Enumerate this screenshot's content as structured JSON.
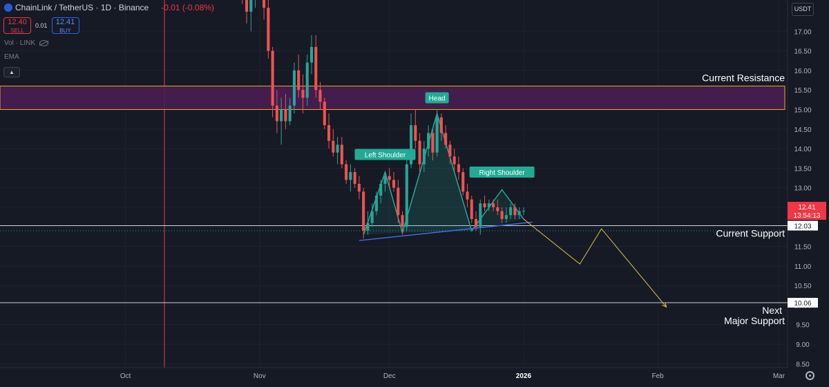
{
  "header": {
    "symbol": "ChainLink / TetherUS · 1D · Binance",
    "change": "-0.01 (-0.08%)",
    "sell_price": "12.40",
    "sell_label": "SELL",
    "spread": "0.01",
    "buy_price": "12.41",
    "buy_label": "BUY",
    "vol_label": "Vol · LINK",
    "ema_label": "EMA",
    "collapse_icon": "chevron-up-icon",
    "visibility_icon": "eye-off-icon"
  },
  "unit_label": "USDT",
  "settings_icon": "gear-icon",
  "colors": {
    "background": "#161a25",
    "up": "#26a69a",
    "down": "#ef5350",
    "resistance_fill": "#4a1e55",
    "resistance_border": "#f5a623",
    "trend": "#3f6fe8",
    "forecast": "#e0c14b",
    "pattern": "#22ab94",
    "price_tag": "#f23645"
  },
  "chart_data": {
    "type": "candlestick",
    "symbol": "LINK/USDT",
    "timeframe": "1D",
    "y_axis": {
      "min": 8.4,
      "max": 17.8,
      "ticks": [
        17.0,
        16.5,
        16.0,
        15.5,
        15.0,
        14.5,
        14.0,
        13.5,
        13.0,
        12.5,
        12.0,
        11.5,
        11.0,
        10.5,
        10.0,
        9.5,
        9.0,
        8.5
      ],
      "tick_labels": [
        "17.00",
        "16.50",
        "16.00",
        "15.50",
        "15.00",
        "14.50",
        "14.00",
        "13.50",
        "13.00",
        "12.50",
        "12.00",
        "11.50",
        "11.00",
        "10.50",
        "10.00",
        "9.50",
        "9.00",
        "8.50"
      ]
    },
    "x_axis": {
      "start": "2025-09-02",
      "end": "2026-03-03",
      "ticks": [
        {
          "date": "2025-10-01",
          "label": "Oct",
          "bold": false
        },
        {
          "date": "2025-11-01",
          "label": "Nov",
          "bold": false
        },
        {
          "date": "2025-12-01",
          "label": "Dec",
          "bold": false
        },
        {
          "date": "2026-01-01",
          "label": "2026",
          "bold": true
        },
        {
          "date": "2026-02-01",
          "label": "Feb",
          "bold": false
        },
        {
          "date": "2026-03-01",
          "label": "Mar",
          "bold": false
        }
      ]
    },
    "marker_line_date": "2025-10-10",
    "candles": [
      {
        "t": "2025-10-28",
        "o": 18.2,
        "h": 18.6,
        "l": 17.7,
        "c": 17.8
      },
      {
        "t": "2025-10-29",
        "o": 17.8,
        "h": 18.1,
        "l": 17.2,
        "c": 17.5
      },
      {
        "t": "2025-10-30",
        "o": 17.5,
        "h": 18.0,
        "l": 17.0,
        "c": 17.9
      },
      {
        "t": "2025-10-31",
        "o": 17.9,
        "h": 18.4,
        "l": 17.6,
        "c": 18.1
      },
      {
        "t": "2025-11-01",
        "o": 18.1,
        "h": 18.3,
        "l": 17.8,
        "c": 17.9
      },
      {
        "t": "2025-11-02",
        "o": 17.9,
        "h": 18.2,
        "l": 17.3,
        "c": 17.6
      },
      {
        "t": "2025-11-03",
        "o": 17.6,
        "h": 17.8,
        "l": 16.3,
        "c": 16.5
      },
      {
        "t": "2025-11-04",
        "o": 16.5,
        "h": 16.6,
        "l": 14.8,
        "c": 15.1
      },
      {
        "t": "2025-11-05",
        "o": 15.1,
        "h": 15.5,
        "l": 14.4,
        "c": 14.7
      },
      {
        "t": "2025-11-06",
        "o": 14.7,
        "h": 15.3,
        "l": 14.1,
        "c": 15.0
      },
      {
        "t": "2025-11-07",
        "o": 15.0,
        "h": 15.4,
        "l": 14.5,
        "c": 14.7
      },
      {
        "t": "2025-11-08",
        "o": 14.7,
        "h": 15.3,
        "l": 14.6,
        "c": 15.1
      },
      {
        "t": "2025-11-09",
        "o": 15.1,
        "h": 16.2,
        "l": 14.9,
        "c": 16.0
      },
      {
        "t": "2025-11-10",
        "o": 16.0,
        "h": 16.4,
        "l": 15.3,
        "c": 15.5
      },
      {
        "t": "2025-11-11",
        "o": 15.5,
        "h": 15.9,
        "l": 14.9,
        "c": 15.3
      },
      {
        "t": "2025-11-12",
        "o": 15.3,
        "h": 16.4,
        "l": 15.1,
        "c": 16.2
      },
      {
        "t": "2025-11-13",
        "o": 16.2,
        "h": 16.9,
        "l": 15.9,
        "c": 16.6
      },
      {
        "t": "2025-11-14",
        "o": 16.6,
        "h": 16.9,
        "l": 15.3,
        "c": 15.5
      },
      {
        "t": "2025-11-15",
        "o": 15.5,
        "h": 15.7,
        "l": 15.0,
        "c": 15.2
      },
      {
        "t": "2025-11-16",
        "o": 15.2,
        "h": 15.3,
        "l": 14.5,
        "c": 14.6
      },
      {
        "t": "2025-11-17",
        "o": 14.6,
        "h": 14.9,
        "l": 14.0,
        "c": 14.2
      },
      {
        "t": "2025-11-18",
        "o": 14.2,
        "h": 14.5,
        "l": 13.8,
        "c": 13.9
      },
      {
        "t": "2025-11-19",
        "o": 13.9,
        "h": 14.3,
        "l": 13.6,
        "c": 14.1
      },
      {
        "t": "2025-11-20",
        "o": 14.1,
        "h": 14.3,
        "l": 13.5,
        "c": 13.6
      },
      {
        "t": "2025-11-21",
        "o": 13.6,
        "h": 13.7,
        "l": 13.1,
        "c": 13.2
      },
      {
        "t": "2025-11-22",
        "o": 13.2,
        "h": 13.6,
        "l": 12.9,
        "c": 13.4
      },
      {
        "t": "2025-11-23",
        "o": 13.4,
        "h": 13.5,
        "l": 13.0,
        "c": 13.1
      },
      {
        "t": "2025-11-24",
        "o": 13.1,
        "h": 13.3,
        "l": 12.7,
        "c": 12.9
      },
      {
        "t": "2025-11-25",
        "o": 12.9,
        "h": 13.0,
        "l": 11.7,
        "c": 11.9
      },
      {
        "t": "2025-11-26",
        "o": 11.9,
        "h": 12.4,
        "l": 11.8,
        "c": 12.1
      },
      {
        "t": "2025-11-27",
        "o": 12.1,
        "h": 12.6,
        "l": 12.0,
        "c": 12.4
      },
      {
        "t": "2025-11-28",
        "o": 12.4,
        "h": 12.9,
        "l": 12.3,
        "c": 12.8
      },
      {
        "t": "2025-11-29",
        "o": 12.8,
        "h": 13.2,
        "l": 12.6,
        "c": 13.1
      },
      {
        "t": "2025-11-30",
        "o": 13.1,
        "h": 13.4,
        "l": 12.9,
        "c": 13.3
      },
      {
        "t": "2025-12-01",
        "o": 13.3,
        "h": 13.5,
        "l": 13.0,
        "c": 13.2
      },
      {
        "t": "2025-12-02",
        "o": 13.2,
        "h": 13.4,
        "l": 12.9,
        "c": 13.0
      },
      {
        "t": "2025-12-03",
        "o": 13.0,
        "h": 13.2,
        "l": 12.1,
        "c": 12.3
      },
      {
        "t": "2025-12-04",
        "o": 12.3,
        "h": 12.4,
        "l": 11.8,
        "c": 12.0
      },
      {
        "t": "2025-12-05",
        "o": 12.0,
        "h": 13.8,
        "l": 11.9,
        "c": 13.6
      },
      {
        "t": "2025-12-06",
        "o": 13.6,
        "h": 14.9,
        "l": 13.5,
        "c": 14.6
      },
      {
        "t": "2025-12-07",
        "o": 14.6,
        "h": 15.0,
        "l": 14.0,
        "c": 14.2
      },
      {
        "t": "2025-12-08",
        "o": 14.2,
        "h": 14.4,
        "l": 13.4,
        "c": 13.6
      },
      {
        "t": "2025-12-09",
        "o": 13.6,
        "h": 14.2,
        "l": 13.4,
        "c": 14.0
      },
      {
        "t": "2025-12-10",
        "o": 14.0,
        "h": 14.6,
        "l": 13.8,
        "c": 14.4
      },
      {
        "t": "2025-12-11",
        "o": 14.4,
        "h": 14.5,
        "l": 13.7,
        "c": 13.9
      },
      {
        "t": "2025-12-12",
        "o": 13.9,
        "h": 15.0,
        "l": 13.8,
        "c": 14.8
      },
      {
        "t": "2025-12-13",
        "o": 14.8,
        "h": 14.9,
        "l": 14.2,
        "c": 14.4
      },
      {
        "t": "2025-12-14",
        "o": 14.4,
        "h": 14.6,
        "l": 14.0,
        "c": 14.1
      },
      {
        "t": "2025-12-15",
        "o": 14.1,
        "h": 14.2,
        "l": 13.6,
        "c": 13.8
      },
      {
        "t": "2025-12-16",
        "o": 13.8,
        "h": 14.0,
        "l": 13.4,
        "c": 13.6
      },
      {
        "t": "2025-12-17",
        "o": 13.6,
        "h": 13.8,
        "l": 13.2,
        "c": 13.4
      },
      {
        "t": "2025-12-18",
        "o": 13.4,
        "h": 13.5,
        "l": 12.8,
        "c": 12.9
      },
      {
        "t": "2025-12-19",
        "o": 12.9,
        "h": 13.1,
        "l": 12.5,
        "c": 12.7
      },
      {
        "t": "2025-12-20",
        "o": 12.7,
        "h": 12.8,
        "l": 12.1,
        "c": 12.2
      },
      {
        "t": "2025-12-21",
        "o": 12.2,
        "h": 12.4,
        "l": 11.9,
        "c": 12.0
      },
      {
        "t": "2025-12-22",
        "o": 12.0,
        "h": 12.7,
        "l": 11.8,
        "c": 12.6
      },
      {
        "t": "2025-12-23",
        "o": 12.6,
        "h": 12.8,
        "l": 12.4,
        "c": 12.5
      },
      {
        "t": "2025-12-24",
        "o": 12.5,
        "h": 12.7,
        "l": 12.4,
        "c": 12.6
      },
      {
        "t": "2025-12-25",
        "o": 12.6,
        "h": 12.7,
        "l": 12.4,
        "c": 12.5
      },
      {
        "t": "2025-12-26",
        "o": 12.5,
        "h": 12.7,
        "l": 12.3,
        "c": 12.4
      },
      {
        "t": "2025-12-27",
        "o": 12.4,
        "h": 12.5,
        "l": 12.1,
        "c": 12.2
      },
      {
        "t": "2025-12-28",
        "o": 12.2,
        "h": 12.5,
        "l": 12.1,
        "c": 12.3
      },
      {
        "t": "2025-12-29",
        "o": 12.3,
        "h": 12.6,
        "l": 12.2,
        "c": 12.5
      },
      {
        "t": "2025-12-30",
        "o": 12.5,
        "h": 12.6,
        "l": 12.2,
        "c": 12.3
      },
      {
        "t": "2025-12-31",
        "o": 12.3,
        "h": 12.5,
        "l": 12.2,
        "c": 12.4
      },
      {
        "t": "2026-01-01",
        "o": 12.4,
        "h": 12.5,
        "l": 12.3,
        "c": 12.41
      }
    ],
    "resistance_zone": {
      "from_price": 15.0,
      "to_price": 15.6,
      "label": "Current Resistance"
    },
    "levels": [
      {
        "price": 12.03,
        "tag": "12.03",
        "label": "Current Support"
      },
      {
        "price": 10.06,
        "tag": "10.06",
        "label": "Next Major Support"
      }
    ],
    "dotted_level": 11.9,
    "current_price": {
      "price": 12.41,
      "label": "12.41",
      "countdown": "13:54:13"
    },
    "neckline": [
      {
        "t": "2025-11-24",
        "p": 11.65
      },
      {
        "t": "2026-01-03",
        "p": 12.12
      }
    ],
    "pattern_path": [
      {
        "t": "2025-11-25",
        "p": 11.8
      },
      {
        "t": "2025-11-30",
        "p": 13.4
      },
      {
        "t": "2025-12-04",
        "p": 11.85
      },
      {
        "t": "2025-12-12",
        "p": 14.9
      },
      {
        "t": "2025-12-20",
        "p": 11.9
      },
      {
        "t": "2025-12-27",
        "p": 12.95
      },
      {
        "t": "2026-01-01",
        "p": 12.2
      }
    ],
    "pattern_labels": [
      {
        "text": "Left Shoulder",
        "t": "2025-11-30",
        "p": 13.85
      },
      {
        "text": "Head",
        "t": "2025-12-12",
        "p": 15.3
      },
      {
        "text": "Right Shoulder",
        "t": "2025-12-27",
        "p": 13.4
      }
    ],
    "forecast_path": [
      {
        "t": "2026-01-01",
        "p": 12.2
      },
      {
        "t": "2026-01-14",
        "p": 11.05
      },
      {
        "t": "2026-01-19",
        "p": 11.95
      },
      {
        "t": "2026-02-03",
        "p": 9.95
      }
    ]
  }
}
